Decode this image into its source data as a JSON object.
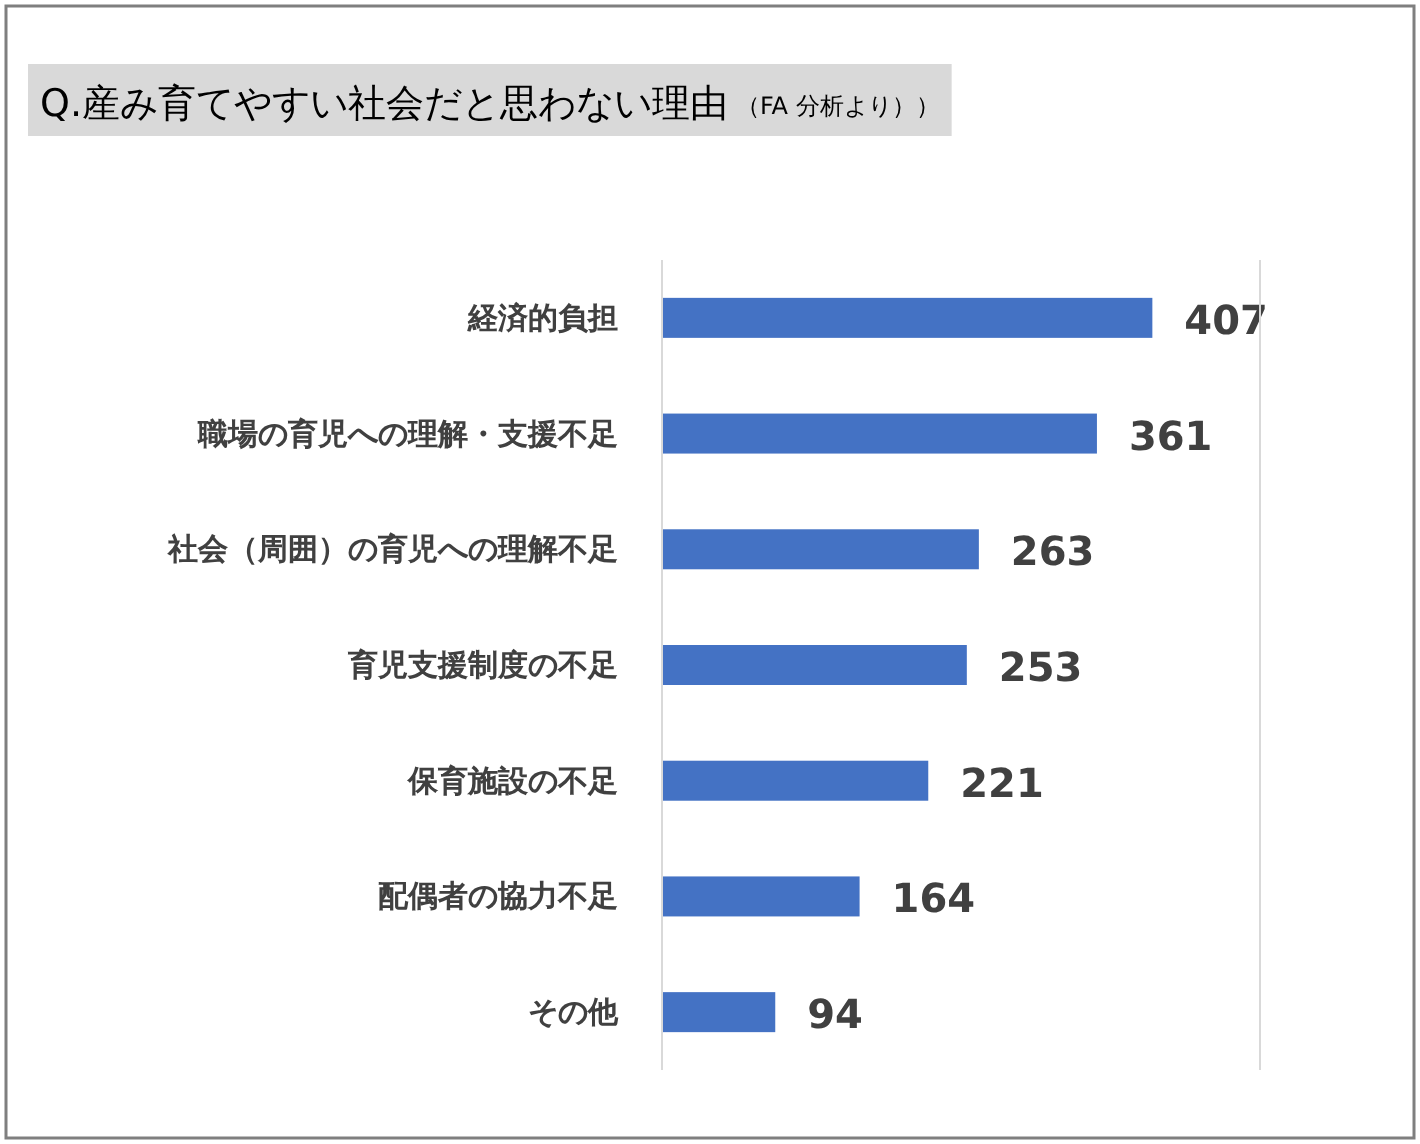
{
  "chart_data": {
    "type": "bar",
    "orientation": "horizontal",
    "title": "Q.産み育てやすい社会だと思わない理由",
    "subtitle": "（FA 分析より））",
    "categories": [
      "経済的負担",
      "職場の育児への理解・支援不足",
      "社会（周囲）の育児への理解不足",
      "育児支援制度の不足",
      "保育施設の不足",
      "配偶者の協力不足",
      "その他"
    ],
    "values": [
      407,
      361,
      263,
      253,
      221,
      164,
      94
    ],
    "color": "#4472c4",
    "data_labels": true
  }
}
